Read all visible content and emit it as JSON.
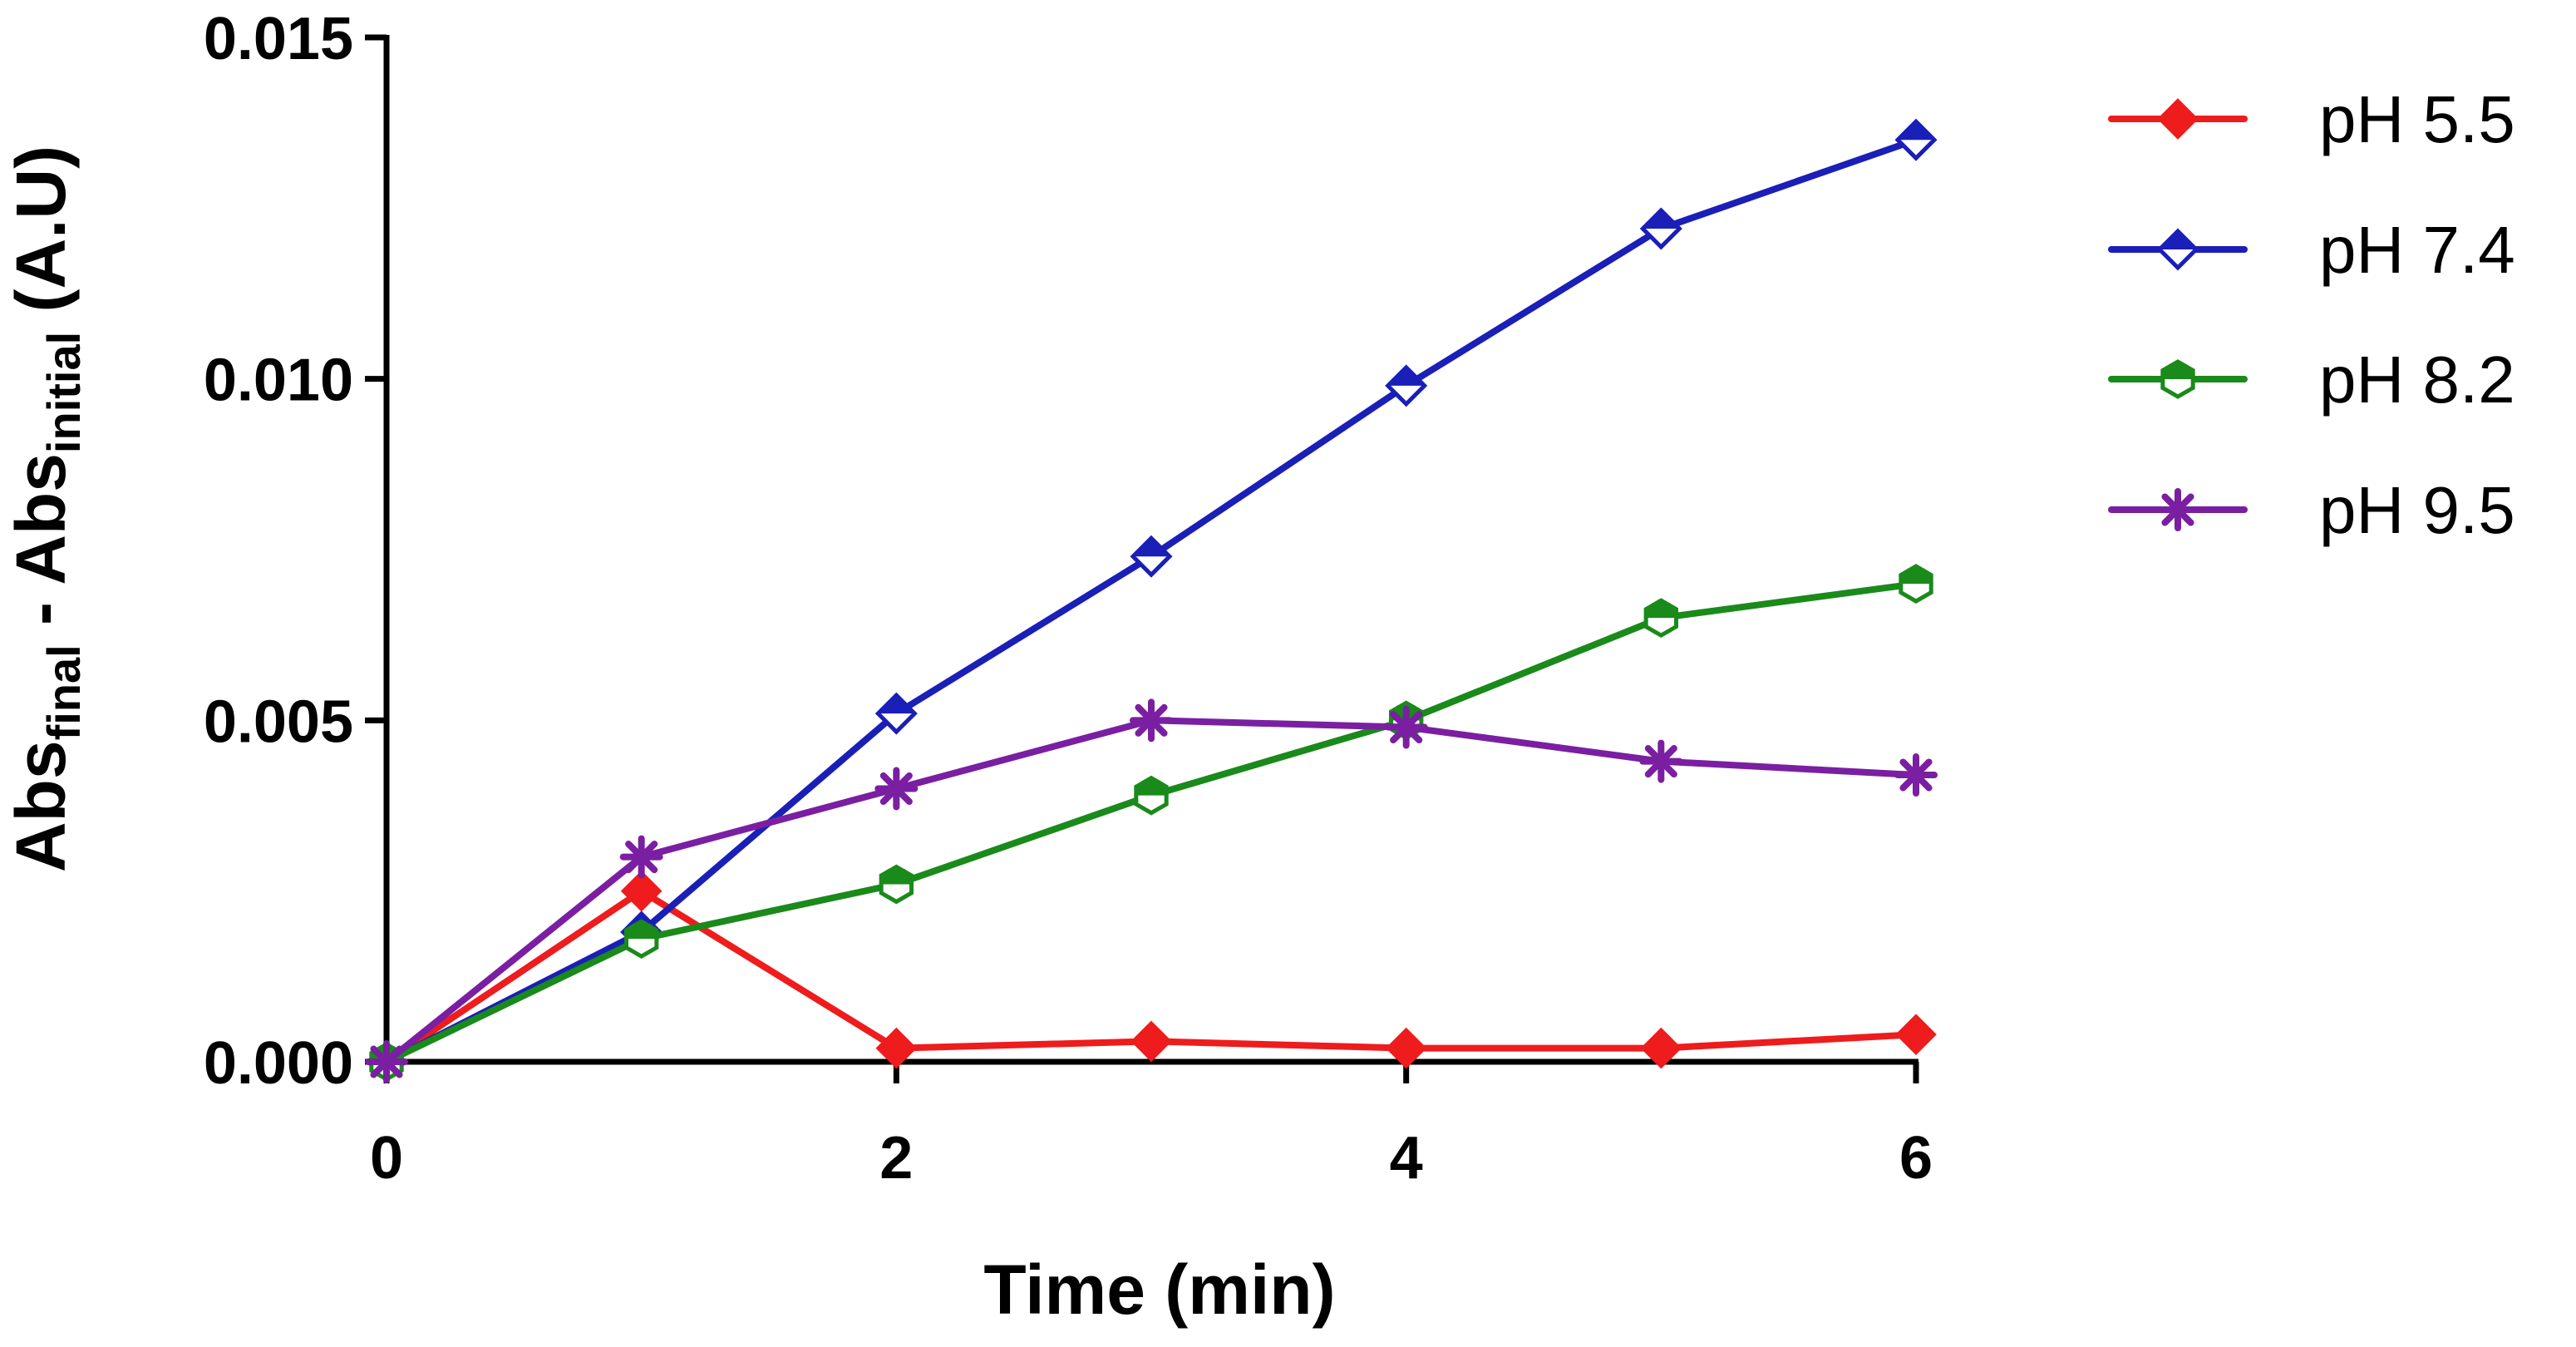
{
  "chart_data": {
    "type": "line",
    "title": "",
    "xlabel": "Time (min)",
    "ylabel": {
      "main1": "Abs",
      "sub1": "final",
      "separator": " - ",
      "main2": "Abs",
      "sub2": "initial",
      "unit": " (A.U)"
    },
    "xlim": [
      0,
      6
    ],
    "ylim": [
      0,
      0.015
    ],
    "xticks": [
      0,
      2,
      4,
      6
    ],
    "xtick_labels": [
      "0",
      "2",
      "4",
      "6"
    ],
    "yticks": [
      0,
      0.005,
      0.01,
      0.015
    ],
    "ytick_labels": [
      "0.000",
      "0.005",
      "0.010",
      "0.015"
    ],
    "grid": false,
    "legend_position": "right",
    "x": [
      0,
      1,
      2,
      3,
      4,
      5,
      6
    ],
    "series": [
      {
        "name": "pH 5.5",
        "color": "#ee1c1c",
        "marker": "diamond-filled",
        "values": [
          0,
          0.0025,
          0.0002,
          0.0003,
          0.0002,
          0.0002,
          0.0004
        ]
      },
      {
        "name": "pH 7.4",
        "color": "#1a1fb8",
        "marker": "diamond-half",
        "values": [
          0,
          0.0019,
          0.0051,
          0.0074,
          0.0099,
          0.0122,
          0.0135
        ]
      },
      {
        "name": "pH 8.2",
        "color": "#1a8a1a",
        "marker": "hexagon-half",
        "values": [
          0,
          0.0018,
          0.0026,
          0.0039,
          0.005,
          0.0065,
          0.007
        ]
      },
      {
        "name": "pH 9.5",
        "color": "#7a1fa2",
        "marker": "asterisk",
        "values": [
          0,
          0.003,
          0.004,
          0.005,
          0.0049,
          0.0044,
          0.0042
        ]
      }
    ]
  }
}
